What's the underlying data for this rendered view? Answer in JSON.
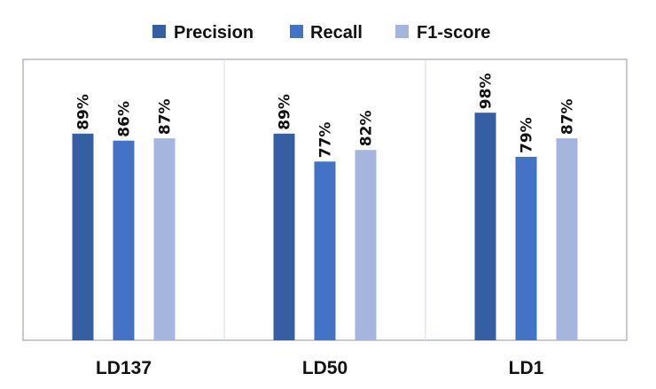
{
  "chart_data": {
    "type": "bar",
    "categories": [
      "LD137",
      "LD50",
      "LD1"
    ],
    "series": [
      {
        "name": "Precision",
        "values": [
          89,
          89,
          98
        ],
        "labels": [
          "89%",
          "89%",
          "98%"
        ]
      },
      {
        "name": "Recall",
        "values": [
          86,
          77,
          79
        ],
        "labels": [
          "86%",
          "77%",
          "79%"
        ]
      },
      {
        "name": "F1-score",
        "values": [
          87,
          82,
          87
        ],
        "labels": [
          "87%",
          "82%",
          "87%"
        ]
      }
    ],
    "ylim": [
      0,
      100
    ],
    "grid": false,
    "legend": "top-center",
    "unit": "%",
    "colors": [
      "#365FA3",
      "#4472C4",
      "#A6B5DE"
    ],
    "frame_color": "#A8AEC2"
  }
}
